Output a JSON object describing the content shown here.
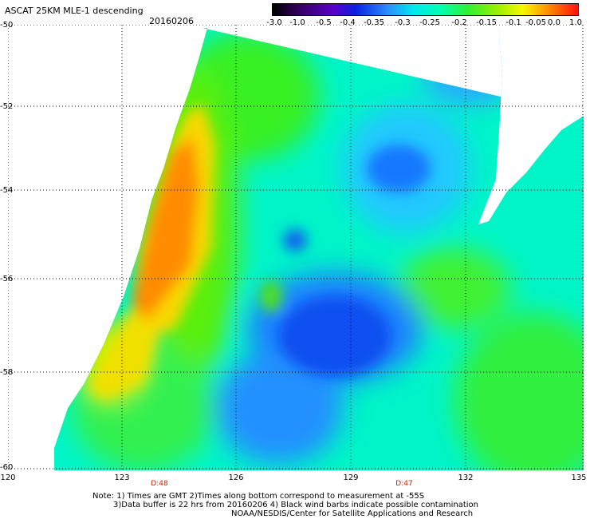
{
  "header": {
    "title": "ASCAT 25KM MLE-1 descending",
    "date": "20160206"
  },
  "colorbar": {
    "labels": [
      "-3.0",
      "-1.0",
      "-0.5",
      "-0.4",
      "-0.35",
      "-0.3",
      "-0.25",
      "-0.2",
      "-0.15",
      "-0.1",
      "-0.05",
      "0.0",
      "1.0"
    ],
    "colors": [
      "#100010",
      "#5a00a8",
      "#1a2ccf",
      "#1054f0",
      "#2088ff",
      "#30c0ff",
      "#00f0e8",
      "#00ff90",
      "#30f030",
      "#a0f000",
      "#f0f000",
      "#ff9000",
      "#ff2010"
    ]
  },
  "map": {
    "lat_labels": [
      "-50",
      "-52",
      "-54",
      "-56",
      "-58",
      "-60"
    ],
    "lon_labels": [
      "120",
      "123",
      "126",
      "129",
      "132",
      "135"
    ],
    "time_labels": [
      "D:48",
      "D:47"
    ]
  },
  "footer": {
    "note_line1": "Note: 1) Times are GMT 2)Times along bottom correspond to measurement at -55S",
    "note_line2": "3)Data buffer is 22 hrs from 20160206 4) Black wind barbs indicate possible contamination",
    "credit": "NOAA/NESDIS/Center for Satellite Applications and Research"
  }
}
